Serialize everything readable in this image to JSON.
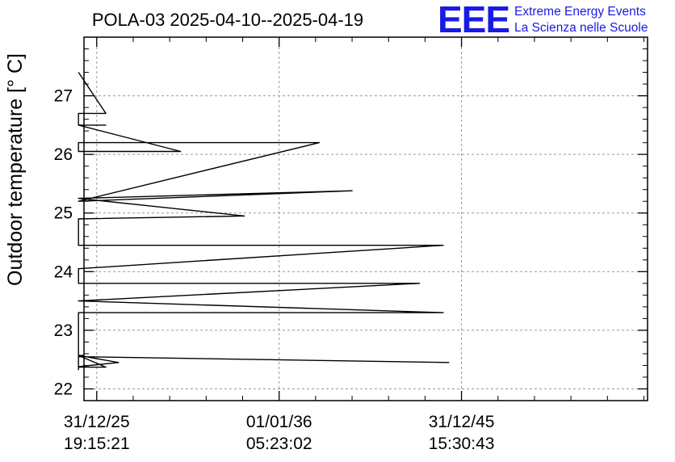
{
  "logo": {
    "mark": "EEE",
    "line1": "Extreme Energy Events",
    "line2": "La Scienza nelle Scuole",
    "color": "#1a1ae6"
  },
  "chart_data": {
    "type": "line",
    "title": "POLA-03 2025-04-10--2025-04-19",
    "ylabel": "Outdoor temperature [° C]",
    "xlabel": "",
    "ylim": [
      21.8,
      28.0
    ],
    "y_ticks": [
      22,
      23,
      24,
      25,
      26,
      27
    ],
    "y_minor_step": 0.2,
    "x_range_years": [
      2025.3,
      2056.2
    ],
    "x_ticks": [
      {
        "pos": 2025.999,
        "line1": "31/12/25",
        "line2": "19:15:21"
      },
      {
        "pos": 2036.0,
        "line1": "01/01/36",
        "line2": "05:23:02"
      },
      {
        "pos": 2045.999,
        "line1": "31/12/45",
        "line2": "15:30:43"
      }
    ],
    "x_minor_step_years": 2,
    "grid": true,
    "series": [
      {
        "color": "#000000",
        "x": [
          2025.0,
          2025.0,
          2027.2,
          2025.0,
          2025.0,
          2025.0,
          2025.0,
          2025.0,
          2025.3,
          2025.0,
          2026.5,
          2025.0,
          2025.0,
          2025.0,
          2025.0,
          2045.3,
          2025.0,
          2025.0,
          2025.0,
          2045.0,
          2025.0,
          2025.0,
          2043.7,
          2025.0,
          2025.0,
          2045.0,
          2025.0,
          2025.0,
          2034.1,
          2025.0,
          2025.0,
          2040.0,
          2025.0,
          2025.0,
          2038.2,
          2025.0,
          2025.0,
          2030.6,
          2025.0,
          2025.0,
          2026.5,
          2025.0,
          2025.0,
          2026.5,
          2025.0,
          2025.0,
          2026.5,
          2025.0,
          2025.0,
          2026.5,
          2025.0
        ],
        "y": [
          22.32,
          22.38,
          22.45,
          22.57,
          22.57,
          22.57,
          22.58,
          22.57,
          22.57,
          22.57,
          22.37,
          22.37,
          22.4,
          22.5,
          22.55,
          22.45,
          22.55,
          23.3,
          23.3,
          23.3,
          23.5,
          23.5,
          23.8,
          23.8,
          24.05,
          24.45,
          24.45,
          24.9,
          24.95,
          25.25,
          25.25,
          25.38,
          25.2,
          25.2,
          26.2,
          26.2,
          26.05,
          26.05,
          26.5,
          26.5,
          26.5,
          26.5,
          26.7,
          26.7,
          26.7,
          26.7,
          26.7,
          26.7,
          26.7,
          26.7,
          27.4
        ]
      }
    ]
  }
}
